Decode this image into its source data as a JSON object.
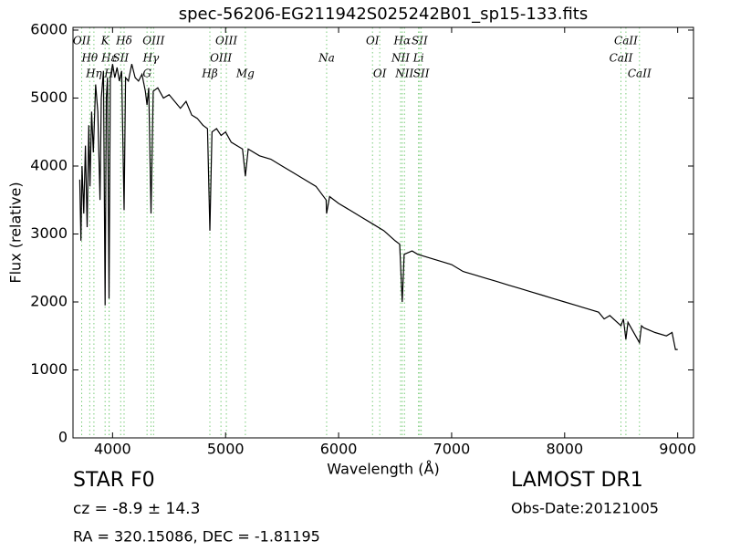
{
  "chart_data": {
    "type": "line",
    "title": "spec-56206-EG211942S025242B01_sp15-133.fits",
    "x_label": "Wavelength (Å)",
    "y_label": "Flux (relative)",
    "xlim": [
      3650,
      9140
    ],
    "ylim": [
      0,
      6040
    ],
    "xticks": [
      4000,
      5000,
      6000,
      7000,
      8000,
      9000
    ],
    "yticks": [
      0,
      1000,
      2000,
      3000,
      4000,
      5000,
      6000
    ],
    "series": [
      {
        "color": "#000000",
        "x": [
          3710,
          3720,
          3730,
          3745,
          3760,
          3775,
          3790,
          3800,
          3815,
          3830,
          3850,
          3870,
          3889,
          3900,
          3920,
          3934,
          3945,
          3955,
          3969,
          3980,
          4000,
          4020,
          4040,
          4060,
          4080,
          4102,
          4115,
          4140,
          4170,
          4200,
          4230,
          4260,
          4290,
          4305,
          4320,
          4340,
          4360,
          4400,
          4450,
          4500,
          4550,
          4600,
          4650,
          4700,
          4750,
          4800,
          4840,
          4861,
          4880,
          4920,
          4960,
          5000,
          5050,
          5100,
          5150,
          5175,
          5200,
          5300,
          5400,
          5500,
          5600,
          5700,
          5800,
          5890,
          5894,
          5920,
          6000,
          6100,
          6200,
          6300,
          6400,
          6500,
          6540,
          6563,
          6580,
          6650,
          6700,
          6800,
          6900,
          7000,
          7100,
          7200,
          7300,
          7400,
          7500,
          7600,
          7700,
          7800,
          7900,
          8000,
          8100,
          8200,
          8300,
          8350,
          8400,
          8498,
          8520,
          8542,
          8560,
          8662,
          8680,
          8700,
          8800,
          8900,
          8950,
          8980,
          9000
        ],
        "values": [
          3800,
          2900,
          4000,
          3300,
          4300,
          3100,
          4600,
          3700,
          4800,
          4200,
          5200,
          4800,
          3500,
          5000,
          5400,
          1950,
          5000,
          5300,
          2050,
          5300,
          5500,
          5300,
          5450,
          5250,
          5400,
          3350,
          5300,
          5250,
          5500,
          5300,
          5250,
          5350,
          5100,
          4900,
          5150,
          3300,
          5100,
          5150,
          5000,
          5050,
          4950,
          4850,
          4950,
          4750,
          4700,
          4600,
          4550,
          3050,
          4500,
          4550,
          4450,
          4500,
          4350,
          4300,
          4250,
          3850,
          4250,
          4150,
          4100,
          4000,
          3900,
          3800,
          3700,
          3500,
          3300,
          3550,
          3450,
          3350,
          3250,
          3150,
          3050,
          2900,
          2850,
          2000,
          2700,
          2750,
          2700,
          2650,
          2600,
          2550,
          2450,
          2400,
          2350,
          2300,
          2250,
          2200,
          2150,
          2100,
          2050,
          2000,
          1950,
          1900,
          1850,
          1750,
          1800,
          1650,
          1750,
          1450,
          1700,
          1400,
          1650,
          1620,
          1550,
          1500,
          1550,
          1300,
          1300
        ]
      }
    ],
    "line_color": "#7ccd7c",
    "spectral_lines": [
      {
        "x": 3727,
        "label": "OII"
      },
      {
        "x": 3798,
        "label": "Hθ"
      },
      {
        "x": 3835,
        "label": "Hη"
      },
      {
        "x": 3934,
        "label": "K"
      },
      {
        "x": 3970,
        "label": "Hε"
      },
      {
        "x": 3969,
        "label": "H"
      },
      {
        "x": 4102,
        "label": "Hδ"
      },
      {
        "x": 4072,
        "label": "SII"
      },
      {
        "x": 4305,
        "label": "G"
      },
      {
        "x": 4363,
        "label": "OIII"
      },
      {
        "x": 4340,
        "label": "Hγ"
      },
      {
        "x": 4861,
        "label": "Hβ"
      },
      {
        "x": 5007,
        "label": "OIII"
      },
      {
        "x": 4959,
        "label": "OIII"
      },
      {
        "x": 5175,
        "label": "Mg"
      },
      {
        "x": 6300,
        "label": "OI"
      },
      {
        "x": 5894,
        "label": "Na"
      },
      {
        "x": 6364,
        "label": "OI"
      },
      {
        "x": 6563,
        "label": "Hα"
      },
      {
        "x": 6548,
        "label": "NII"
      },
      {
        "x": 6583,
        "label": "NII"
      },
      {
        "x": 6717,
        "label": "SII"
      },
      {
        "x": 6707,
        "label": "Li"
      },
      {
        "x": 6731,
        "label": "SII"
      },
      {
        "x": 8542,
        "label": "CaII"
      },
      {
        "x": 8498,
        "label": "CaII"
      },
      {
        "x": 8662,
        "label": "CaII"
      }
    ],
    "info_left": [
      "STAR   F0",
      "cz = -8.9 ± 14.3",
      "RA = 320.15086, DEC = -1.81195"
    ],
    "info_right": [
      "LAMOST DR1",
      "Obs-Date:20121005"
    ]
  }
}
